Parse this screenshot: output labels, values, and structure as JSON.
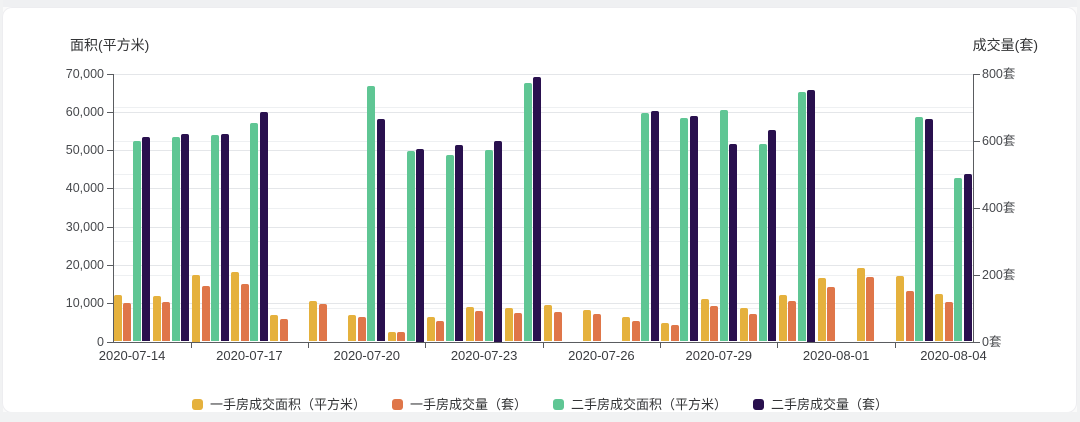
{
  "titles": {
    "y_left": "面积(平方米)",
    "y_right": "成交量(套)"
  },
  "chart_data": {
    "type": "bar",
    "categories": [
      "2020-07-14",
      "2020-07-15",
      "2020-07-16",
      "2020-07-17",
      "2020-07-18",
      "2020-07-19",
      "2020-07-20",
      "2020-07-21",
      "2020-07-22",
      "2020-07-23",
      "2020-07-24",
      "2020-07-25",
      "2020-07-26",
      "2020-07-27",
      "2020-07-28",
      "2020-07-29",
      "2020-07-30",
      "2020-07-31",
      "2020-08-01",
      "2020-08-02",
      "2020-08-03",
      "2020-08-04"
    ],
    "x_label_every": 3,
    "x_tick_labels": [
      "2020-07-14",
      "2020-07-17",
      "2020-07-20",
      "2020-07-23",
      "2020-07-26",
      "2020-07-29",
      "2020-08-01",
      "2020-08-04"
    ],
    "y_left_axis": {
      "label": "面积(平方米)",
      "min": 0,
      "max": 70000,
      "tick_step": 10000,
      "tick_labels": [
        "0",
        "10,000",
        "20,000",
        "30,000",
        "40,000",
        "50,000",
        "60,000",
        "70,000"
      ]
    },
    "y_right_axis": {
      "label": "成交量(套)",
      "min": 0,
      "max": 800,
      "tick_step": 200,
      "tick_labels": [
        "0套",
        "200套",
        "400套",
        "600套",
        "800套"
      ],
      "minor_grid_step": 100
    },
    "grid": true,
    "legend_position": "bottom",
    "series": [
      {
        "name": "一手房成交面积（平方米）",
        "axis": "left",
        "color": "#E5B13D",
        "values": [
          12100,
          12000,
          17500,
          18100,
          7000,
          10600,
          6900,
          2600,
          6500,
          9100,
          8700,
          9600,
          8300,
          6500,
          4800,
          11100,
          8700,
          12200,
          16500,
          19100,
          17000,
          12400
        ]
      },
      {
        "name": "一手房成交量（套）",
        "axis": "right",
        "color": "#DF7649",
        "values": [
          114,
          117,
          165,
          172,
          67,
          112,
          72,
          27,
          60,
          90,
          85,
          88,
          83,
          60,
          48,
          105,
          82,
          122,
          164,
          194,
          152,
          119
        ]
      },
      {
        "name": "二手房成交面积（平方米）",
        "axis": "left",
        "color": "#5FC694",
        "values": [
          52300,
          53400,
          54000,
          57200,
          null,
          null,
          66700,
          49800,
          48700,
          50000,
          67500,
          null,
          null,
          59800,
          58500,
          60400,
          51700,
          65200,
          null,
          null,
          58700,
          42600
        ]
      },
      {
        "name": "二手房成交量（套）",
        "axis": "right",
        "color": "#29104E",
        "values": [
          610,
          620,
          620,
          684,
          null,
          null,
          665,
          575,
          588,
          600,
          790,
          null,
          null,
          687,
          673,
          590,
          631,
          750,
          null,
          null,
          663,
          501
        ]
      }
    ]
  }
}
